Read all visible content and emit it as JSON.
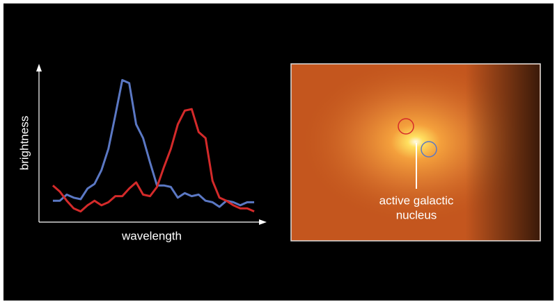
{
  "chart_data": {
    "type": "line",
    "x_label": "wavelength",
    "y_label": "brightness",
    "x": [
      0,
      1,
      2,
      3,
      4,
      5,
      6,
      7,
      8,
      9,
      10,
      11,
      12,
      13,
      14,
      15,
      16,
      17,
      18,
      19,
      20,
      21,
      22,
      23,
      24,
      25,
      26,
      27,
      28,
      29
    ],
    "xlim": [
      -2,
      30.5
    ],
    "ylim": [
      0,
      100
    ],
    "series": [
      {
        "name": "blue",
        "color": "#5b78c4",
        "values": [
          14,
          14,
          18,
          16,
          15,
          22,
          25,
          34,
          48,
          70,
          93,
          91,
          64,
          55,
          39,
          24,
          24,
          23,
          16,
          19,
          17,
          18,
          14,
          13,
          10,
          14,
          13,
          11,
          13,
          13
        ]
      },
      {
        "name": "red",
        "color": "#d42a2a",
        "values": [
          24,
          20,
          14,
          9,
          7,
          11,
          14,
          11,
          13,
          17,
          17,
          22,
          26,
          18,
          17,
          23,
          36,
          48,
          64,
          73,
          74,
          59,
          55,
          27,
          16,
          14,
          11,
          9,
          9,
          7
        ]
      }
    ]
  },
  "image": {
    "annotation": [
      "active galactic",
      "nucleus"
    ]
  }
}
